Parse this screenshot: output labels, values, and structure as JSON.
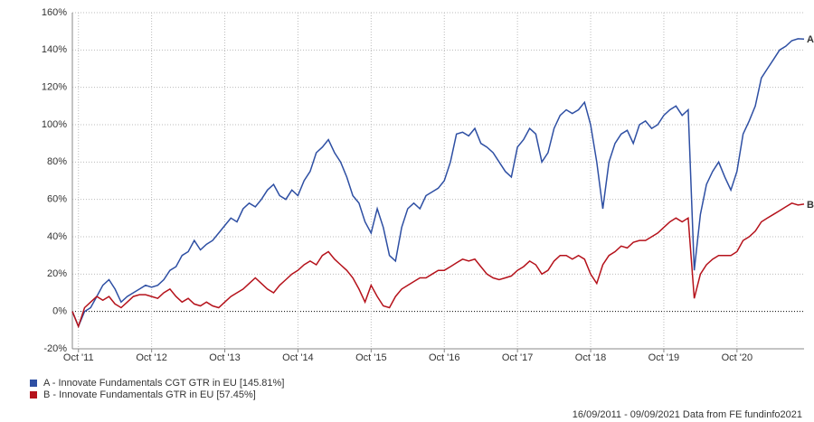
{
  "chart_data": {
    "type": "line",
    "categories": [
      null,
      "Oct '11",
      null,
      null,
      null,
      null,
      null,
      null,
      null,
      null,
      null,
      null,
      null,
      "Oct '12",
      null,
      null,
      null,
      null,
      null,
      null,
      null,
      null,
      null,
      null,
      null,
      "Oct '13",
      null,
      null,
      null,
      null,
      null,
      null,
      null,
      null,
      null,
      null,
      null,
      "Oct '14",
      null,
      null,
      null,
      null,
      null,
      null,
      null,
      null,
      null,
      null,
      null,
      "Oct '15",
      null,
      null,
      null,
      null,
      null,
      null,
      null,
      null,
      null,
      null,
      null,
      "Oct '16",
      null,
      null,
      null,
      null,
      null,
      null,
      null,
      null,
      null,
      null,
      null,
      "Oct '17",
      null,
      null,
      null,
      null,
      null,
      null,
      null,
      null,
      null,
      null,
      null,
      "Oct '18",
      null,
      null,
      null,
      null,
      null,
      null,
      null,
      null,
      null,
      null,
      null,
      "Oct '19",
      null,
      null,
      null,
      null,
      null,
      null,
      null,
      null,
      null,
      null,
      null,
      "Oct '20",
      null,
      null,
      null,
      null,
      null,
      null,
      null,
      null,
      null,
      null,
      null
    ],
    "series": [
      {
        "name": "A - Innovate Fundamentals CGT GTR in EU [145.81%]",
        "label": "A",
        "color": "#2e4fa3",
        "values": [
          0,
          -8,
          0,
          2,
          8,
          14,
          17,
          12,
          5,
          8,
          10,
          12,
          14,
          13,
          14,
          17,
          22,
          24,
          30,
          32,
          38,
          33,
          36,
          38,
          42,
          46,
          50,
          48,
          55,
          58,
          56,
          60,
          65,
          68,
          62,
          60,
          65,
          62,
          70,
          75,
          85,
          88,
          92,
          85,
          80,
          72,
          62,
          58,
          48,
          42,
          55,
          45,
          30,
          27,
          45,
          55,
          58,
          55,
          62,
          64,
          66,
          70,
          80,
          95,
          96,
          94,
          98,
          90,
          88,
          85,
          80,
          75,
          72,
          88,
          92,
          98,
          95,
          80,
          85,
          98,
          105,
          108,
          106,
          108,
          112,
          100,
          80,
          55,
          80,
          90,
          95,
          97,
          90,
          100,
          102,
          98,
          100,
          105,
          108,
          110,
          105,
          108,
          22,
          52,
          68,
          75,
          80,
          72,
          65,
          75,
          95,
          102,
          110,
          125,
          130,
          135,
          140,
          142,
          145,
          146,
          145.81
        ]
      },
      {
        "name": "B - Innovate Fundamentals GTR in EU [57.45%]",
        "label": "B",
        "color": "#b5121b",
        "values": [
          0,
          -8,
          2,
          5,
          8,
          6,
          8,
          4,
          2,
          5,
          8,
          9,
          9,
          8,
          7,
          10,
          12,
          8,
          5,
          7,
          4,
          3,
          5,
          3,
          2,
          5,
          8,
          10,
          12,
          15,
          18,
          15,
          12,
          10,
          14,
          17,
          20,
          22,
          25,
          27,
          25,
          30,
          32,
          28,
          25,
          22,
          18,
          12,
          5,
          14,
          8,
          3,
          2,
          8,
          12,
          14,
          16,
          18,
          18,
          20,
          22,
          22,
          24,
          26,
          28,
          27,
          28,
          24,
          20,
          18,
          17,
          18,
          19,
          22,
          24,
          27,
          25,
          20,
          22,
          27,
          30,
          30,
          28,
          30,
          28,
          20,
          15,
          25,
          30,
          32,
          35,
          34,
          37,
          38,
          38,
          40,
          42,
          45,
          48,
          50,
          48,
          50,
          7,
          20,
          25,
          28,
          30,
          30,
          30,
          32,
          38,
          40,
          43,
          48,
          50,
          52,
          54,
          56,
          58,
          57,
          57.45
        ]
      }
    ],
    "ylim": [
      -20,
      160
    ],
    "yticks": [
      {
        "value": -20,
        "label": "-20%"
      },
      {
        "value": 0,
        "label": "0%"
      },
      {
        "value": 20,
        "label": "20%"
      },
      {
        "value": 40,
        "label": "40%"
      },
      {
        "value": 60,
        "label": "60%"
      },
      {
        "value": 80,
        "label": "80%"
      },
      {
        "value": 100,
        "label": "100%"
      },
      {
        "value": 120,
        "label": "120%"
      },
      {
        "value": 140,
        "label": "140%"
      },
      {
        "value": 160,
        "label": "160%"
      }
    ],
    "grid": true,
    "footer": "16/09/2011 - 09/09/2021 Data from FE fundinfo2021"
  }
}
